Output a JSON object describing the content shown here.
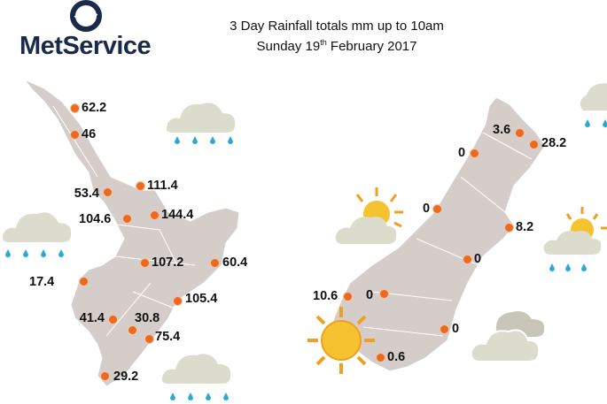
{
  "logo": {
    "text": "MetService"
  },
  "title": {
    "line1": "3 Day Rainfall totals mm up to 10am",
    "line2_prefix": "Sunday 19",
    "line2_sup": "th",
    "line2_suffix": " February 2017"
  },
  "colors": {
    "land": "#d5cdca",
    "dot": "#ea6a1f",
    "cloud": "#dcdccc",
    "rain": "#2aa8d8",
    "sun": "#f5c330"
  },
  "north_island": [
    "62.2",
    "46",
    "53.4",
    "111.4",
    "104.6",
    "144.4",
    "107.2",
    "60.4",
    "17.4",
    "105.4",
    "41.4",
    "30.8",
    "75.4",
    "29.2"
  ],
  "south_island": [
    "3.6",
    "28.2",
    "0",
    "0",
    "8.2",
    "0",
    "10.6",
    "0",
    "0",
    "0.6"
  ],
  "weather_icons": [
    "rain-cloud",
    "rain-cloud",
    "rain-cloud",
    "rain-cloud",
    "sun-cloud",
    "sun-cloud",
    "sun",
    "cloud"
  ]
}
